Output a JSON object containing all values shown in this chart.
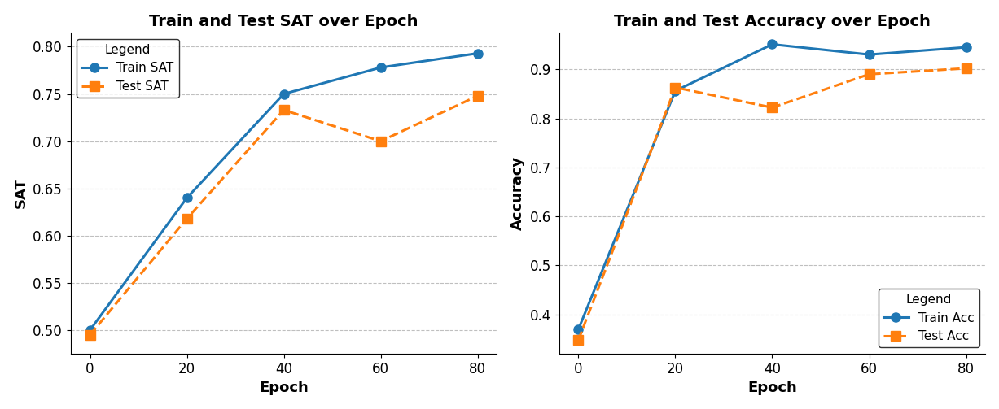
{
  "epochs": [
    0,
    20,
    40,
    60,
    80
  ],
  "train_sat": [
    0.5,
    0.64,
    0.75,
    0.778,
    0.793
  ],
  "test_sat": [
    0.495,
    0.618,
    0.733,
    0.7,
    0.748
  ],
  "train_acc": [
    0.37,
    0.856,
    0.951,
    0.93,
    0.945
  ],
  "test_acc": [
    0.348,
    0.863,
    0.822,
    0.89,
    0.902
  ],
  "train_color": "#1f77b4",
  "test_color": "#ff7f0e",
  "sat_title": "Train and Test SAT over Epoch",
  "acc_title": "Train and Test Accuracy over Epoch",
  "xlabel": "Epoch",
  "sat_ylabel": "SAT",
  "acc_ylabel": "Accuracy",
  "sat_ylim": [
    0.475,
    0.815
  ],
  "acc_ylim": [
    0.32,
    0.975
  ],
  "legend_title": "Legend",
  "train_sat_label": "Train SAT",
  "test_sat_label": "Test SAT",
  "train_acc_label": "Train Acc",
  "test_acc_label": "Test Acc",
  "title_fontsize": 14,
  "label_fontsize": 13,
  "tick_fontsize": 12,
  "legend_fontsize": 11,
  "marker_size": 8,
  "line_width": 2.2,
  "xlim_left": -4,
  "xlim_right": 84
}
